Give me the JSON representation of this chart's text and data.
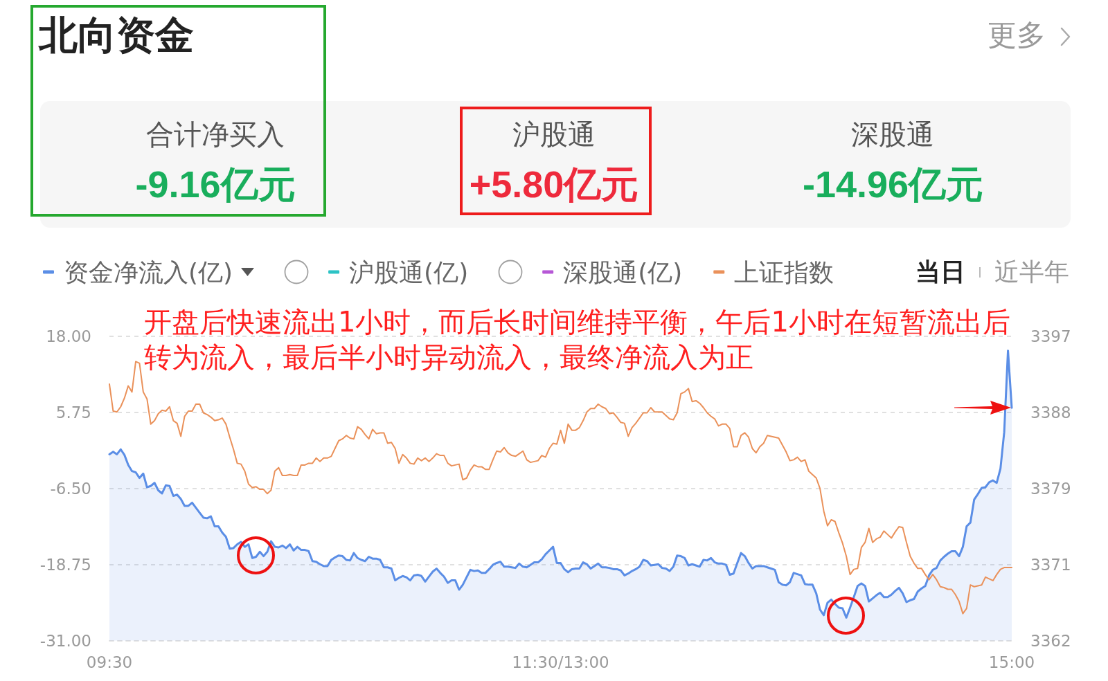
{
  "chart_data": [
    {
      "type": "other",
      "title": "北向资金",
      "annotations": [
        "更多",
        "合计净买入",
        "-9.16亿元",
        "沪股通",
        "+5.80亿元",
        "深股通",
        "-14.96亿元"
      ]
    },
    {
      "type": "line",
      "annotations": [
        "当日",
        "近半年",
        "开盘后快速流出1小时，而后长时间维持平衡，午后1小时在短暂流出后转为流入，最后半小时异动流入，最终净流入为正"
      ],
      "categories": [
        "09:30",
        null,
        null,
        null,
        null,
        null,
        null,
        null,
        null,
        null,
        null,
        null,
        null,
        null,
        null,
        null,
        null,
        null,
        null,
        null,
        null,
        null,
        null,
        null,
        null,
        null,
        null,
        null,
        null,
        null,
        null,
        null,
        null,
        null,
        null,
        null,
        null,
        null,
        null,
        null,
        null,
        null,
        null,
        null,
        null,
        null,
        null,
        null,
        null,
        null,
        null,
        null,
        null,
        null,
        null,
        null,
        null,
        null,
        null,
        null,
        null,
        null,
        null,
        null,
        null,
        null,
        null,
        null,
        null,
        null,
        null,
        null,
        null,
        null,
        null,
        null,
        null,
        null,
        null,
        null,
        null,
        null,
        null,
        null,
        null,
        null,
        null,
        null,
        null,
        null,
        null,
        null,
        null,
        null,
        null,
        null,
        null,
        null,
        null,
        null,
        null,
        null,
        null,
        null,
        null,
        null,
        null,
        null,
        null,
        null,
        null,
        null,
        null,
        null,
        null,
        null,
        null,
        null,
        null,
        null,
        "11:30/13:00",
        null,
        null,
        null,
        null,
        null,
        null,
        null,
        null,
        null,
        null,
        null,
        null,
        null,
        null,
        null,
        null,
        null,
        null,
        null,
        null,
        null,
        null,
        null,
        null,
        null,
        null,
        null,
        null,
        null,
        null,
        null,
        null,
        null,
        null,
        null,
        null,
        null,
        null,
        null,
        null,
        null,
        null,
        null,
        null,
        null,
        null,
        null,
        null,
        null,
        null,
        null,
        null,
        null,
        null,
        null,
        null,
        null,
        null,
        null,
        null,
        null,
        null,
        null,
        null,
        null,
        null,
        null,
        null,
        null,
        null,
        null,
        null,
        null,
        null,
        null,
        null,
        null,
        null,
        null,
        null,
        null,
        null,
        null,
        null,
        null,
        null,
        null,
        null,
        null,
        null,
        null,
        null,
        null,
        null,
        null,
        null,
        null,
        null,
        null,
        null,
        null,
        null,
        null,
        null,
        null,
        null,
        null,
        null,
        null,
        null,
        null,
        null,
        null,
        null,
        null,
        null,
        null,
        null,
        null,
        "15:00"
      ],
      "ylim": [
        -31,
        18
      ],
      "yticks": [
        {
          "value": -31,
          "label": "-31.00"
        },
        -18.75,
        {
          "value": -6.5,
          "label": "-6.50"
        },
        5.75,
        {
          "value": 18,
          "label": "18.00"
        }
      ],
      "y2lim": [
        3362,
        3397
      ],
      "y2ticks": [
        3362,
        {
          "value": 3370.75,
          "label": "3371"
        },
        {
          "value": 3379.5,
          "label": "3379"
        },
        {
          "value": 3388.25,
          "label": "3388"
        },
        3397
      ],
      "grid": "y",
      "legend": "top",
      "series": [
        {
          "name": "资金净流入(亿)",
          "color": "#5b8ee6",
          "values": [
            -1.0,
            -0.6,
            -1.0,
            -0.2,
            -1.1,
            -2.7,
            -3.7,
            -3.9,
            -4.8,
            -4.1,
            -6.3,
            -6.1,
            -5.6,
            -6.8,
            -7.3,
            -6.0,
            -6.1,
            -7.7,
            -7.5,
            -8.2,
            -9.3,
            -9.3,
            -8.8,
            -9.6,
            -10.4,
            -11.2,
            -11.3,
            -11.0,
            -12.6,
            -12.6,
            -13.6,
            -14.3,
            -16.2,
            -16.1,
            -15.5,
            -15.1,
            -15.9,
            -15.5,
            -17.7,
            -17.5,
            -16.7,
            -17.4,
            -16.7,
            -15.0,
            -15.9,
            -16.0,
            -15.7,
            -16.1,
            -15.5,
            -16.5,
            -15.9,
            -16.4,
            -16.4,
            -16.6,
            -18.2,
            -18.3,
            -18.7,
            -19.0,
            -19.0,
            -18.0,
            -17.6,
            -17.3,
            -17.4,
            -18.0,
            -18.1,
            -16.9,
            -17.7,
            -18.0,
            -18.2,
            -17.5,
            -17.8,
            -17.8,
            -18.0,
            -19.2,
            -19.2,
            -19.4,
            -21.3,
            -20.9,
            -20.6,
            -20.8,
            -21.3,
            -20.5,
            -20.4,
            -20.6,
            -21.5,
            -20.7,
            -19.9,
            -19.4,
            -20.1,
            -20.7,
            -21.7,
            -21.3,
            -21.3,
            -22.8,
            -22.0,
            -20.8,
            -19.6,
            -19.8,
            -19.7,
            -20.1,
            -20.1,
            -19.5,
            -18.8,
            -18.5,
            -18.3,
            -19.1,
            -19.1,
            -19.2,
            -19.3,
            -18.6,
            -19.1,
            -19.2,
            -18.8,
            -18.4,
            -18.4,
            -17.9,
            -17.1,
            -16.5,
            -15.9,
            -18.5,
            -18.5,
            -19.5,
            -20.0,
            -19.5,
            -19.4,
            -19.4,
            -18.4,
            -18.7,
            -19.4,
            -19.0,
            -18.6,
            -19.2,
            -19.2,
            -19.3,
            -19.5,
            -19.5,
            -19.7,
            -20.5,
            -20.2,
            -19.8,
            -19.5,
            -19.1,
            -18.0,
            -18.2,
            -18.9,
            -18.8,
            -18.7,
            -19.3,
            -19.4,
            -19.8,
            -19.1,
            -17.3,
            -17.4,
            -17.7,
            -18.9,
            -18.7,
            -18.9,
            -19.1,
            -18.0,
            -18.1,
            -17.7,
            -18.4,
            -18.6,
            -18.6,
            -18.8,
            -20.4,
            -20.2,
            -18.5,
            -16.9,
            -17.4,
            -18.5,
            -19.4,
            -19.0,
            -19.0,
            -19.0,
            -19.2,
            -19.4,
            -19.6,
            -21.6,
            -22.0,
            -22.1,
            -21.6,
            -20.1,
            -20.3,
            -20.5,
            -21.9,
            -22.0,
            -22.0,
            -23.4,
            -26.0,
            -26.9,
            -24.9,
            -24.4,
            -25.1,
            -25.7,
            -25.8,
            -27.3,
            -25.7,
            -24.0,
            -22.2,
            -21.8,
            -22.2,
            -24.7,
            -24.2,
            -23.7,
            -23.3,
            -24.0,
            -24.0,
            -23.6,
            -23.0,
            -22.5,
            -23.4,
            -24.8,
            -24.5,
            -24.3,
            -23.1,
            -22.6,
            -22.2,
            -20.5,
            -19.6,
            -19.3,
            -18.1,
            -17.5,
            -17.0,
            -16.6,
            -16.6,
            -17.4,
            -15.9,
            -12.6,
            -12.0,
            -8.3,
            -7.4,
            -6.4,
            -6.3,
            -5.5,
            -5.2,
            -5.6,
            -3.3,
            2.6,
            15.7,
            6.5
          ],
          "lower": [
            -31,
            -31,
            -31,
            -31,
            -31,
            -31,
            -31,
            -31,
            -31,
            -31,
            -31,
            -31,
            -31,
            -31,
            -31,
            -31,
            -31,
            -31,
            -31,
            -31,
            -31,
            -31,
            -31,
            -31,
            -31,
            -31,
            -31,
            -31,
            -31,
            -31,
            -31,
            -31,
            -31,
            -31,
            -31,
            -31,
            -31,
            -31,
            -31,
            -31,
            -31,
            -31,
            -31,
            -31,
            -31,
            -31,
            -31,
            -31,
            -31,
            -31,
            -31,
            -31,
            -31,
            -31,
            -31,
            -31,
            -31,
            -31,
            -31,
            -31,
            -31,
            -31,
            -31,
            -31,
            -31,
            -31,
            -31,
            -31,
            -31,
            -31,
            -31,
            -31,
            -31,
            -31,
            -31,
            -31,
            -31,
            -31,
            -31,
            -31,
            -31,
            -31,
            -31,
            -31,
            -31,
            -31,
            -31,
            -31,
            -31,
            -31,
            -31,
            -31,
            -31,
            -31,
            -31,
            -31,
            -31,
            -31,
            -31,
            -31,
            -31,
            -31,
            -31,
            -31,
            -31,
            -31,
            -31,
            -31,
            -31,
            -31,
            -31,
            -31,
            -31,
            -31,
            -31,
            -31,
            -31,
            -31,
            -31,
            -31,
            -31,
            -31,
            -31,
            -31,
            -31,
            -31,
            -31,
            -31,
            -31,
            -31,
            -31,
            -31,
            -31,
            -31,
            -31,
            -31,
            -31,
            -31,
            -31,
            -31,
            -31,
            -31,
            -31,
            -31,
            -31,
            -31,
            -31,
            -31,
            -31,
            -31,
            -31,
            -31,
            -31,
            -31,
            -31,
            -31,
            -31,
            -31,
            -31,
            -31,
            -31,
            -31,
            -31,
            -31,
            -31,
            -31,
            -31,
            -31,
            -31,
            -31,
            -31,
            -31,
            -31,
            -31,
            -31,
            -31,
            -31,
            -31,
            -31,
            -31,
            -31,
            -31,
            -31,
            -31,
            -31,
            -31,
            -31,
            -31,
            -31,
            -31,
            -31,
            -31,
            -31,
            -31,
            -31,
            -31,
            -31,
            -31,
            -31,
            -31,
            -31,
            -31,
            -31,
            -31,
            -31,
            -31,
            -31,
            -31,
            -31,
            -31,
            -31,
            -31,
            -31,
            -31,
            -31,
            -31,
            -31,
            -31,
            -31,
            -31,
            -31,
            -31,
            -31,
            -31,
            -31,
            -31,
            -31,
            -31,
            -31,
            -31,
            -31,
            -31,
            -31,
            -31,
            -31,
            -31,
            -31,
            -31,
            -31,
            -31,
            -31
          ],
          "upper": [
            -1.0,
            -0.6,
            -1.0,
            -0.2,
            -1.1,
            -2.7,
            -3.7,
            -3.9,
            -4.8,
            -4.1,
            -6.3,
            -6.1,
            -5.6,
            -6.8,
            -7.3,
            -6.0,
            -6.1,
            -7.7,
            -7.5,
            -8.2,
            -9.3,
            -9.3,
            -8.8,
            -9.6,
            -10.4,
            -11.2,
            -11.3,
            -11.0,
            -12.6,
            -12.6,
            -13.6,
            -14.3,
            -16.2,
            -16.1,
            -15.5,
            -15.1,
            -15.9,
            -15.5,
            -17.7,
            -17.5,
            -16.7,
            -17.4,
            -16.7,
            -15.0,
            -15.9,
            -16.0,
            -15.7,
            -16.1,
            -15.5,
            -16.5,
            -15.9,
            -16.4,
            -16.4,
            -16.6,
            -18.2,
            -18.3,
            -18.7,
            -19.0,
            -19.0,
            -18.0,
            -17.6,
            -17.3,
            -17.4,
            -18.0,
            -18.1,
            -16.9,
            -17.7,
            -18.0,
            -18.2,
            -17.5,
            -17.8,
            -17.8,
            -18.0,
            -19.2,
            -19.2,
            -19.4,
            -21.3,
            -20.9,
            -20.6,
            -20.8,
            -21.3,
            -20.5,
            -20.4,
            -20.6,
            -21.5,
            -20.7,
            -19.9,
            -19.4,
            -20.1,
            -20.7,
            -21.7,
            -21.3,
            -21.3,
            -22.8,
            -22.0,
            -20.8,
            -19.6,
            -19.8,
            -19.7,
            -20.1,
            -20.1,
            -19.5,
            -18.8,
            -18.5,
            -18.3,
            -19.1,
            -19.1,
            -19.2,
            -19.3,
            -18.6,
            -19.1,
            -19.2,
            -18.8,
            -18.4,
            -18.4,
            -17.9,
            -17.1,
            -16.5,
            -15.9,
            -18.5,
            -18.5,
            -19.5,
            -20.0,
            -19.5,
            -19.4,
            -19.4,
            -18.4,
            -18.7,
            -19.4,
            -19.0,
            -18.6,
            -19.2,
            -19.2,
            -19.3,
            -19.5,
            -19.5,
            -19.7,
            -20.5,
            -20.2,
            -19.8,
            -19.5,
            -19.1,
            -18.0,
            -18.2,
            -18.9,
            -18.8,
            -18.7,
            -19.3,
            -19.4,
            -19.8,
            -19.1,
            -17.3,
            -17.4,
            -17.7,
            -18.9,
            -18.7,
            -18.9,
            -19.1,
            -18.0,
            -18.1,
            -17.7,
            -18.4,
            -18.6,
            -18.6,
            -18.8,
            -20.4,
            -20.2,
            -18.5,
            -16.9,
            -17.4,
            -18.5,
            -19.4,
            -19.0,
            -19.0,
            -19.0,
            -19.2,
            -19.4,
            -19.6,
            -21.6,
            -22.0,
            -22.1,
            -21.6,
            -20.1,
            -20.3,
            -20.5,
            -21.9,
            -22.0,
            -22.0,
            -23.4,
            -26.0,
            -26.9,
            -24.9,
            -24.4,
            -25.1,
            -25.7,
            -25.8,
            -27.3,
            -25.7,
            -24.0,
            -22.2,
            -21.8,
            -22.2,
            -24.7,
            -24.2,
            -23.7,
            -23.3,
            -24.0,
            -24.0,
            -23.6,
            -23.0,
            -22.5,
            -23.4,
            -24.8,
            -24.5,
            -24.3,
            -23.1,
            -22.6,
            -22.2,
            -20.5,
            -19.6,
            -19.3,
            -18.1,
            -17.5,
            -17.0,
            -16.6,
            -16.6,
            -17.4,
            -15.9,
            -12.6,
            -12.0,
            -8.3,
            -7.4,
            -6.4,
            -6.3,
            -5.5,
            -5.2,
            -5.6,
            -3.3,
            2.6,
            15.7,
            6.5
          ]
        },
        {
          "name": "沪股通(亿)",
          "color": "#2cc3c5",
          "values": [
            null,
            null,
            null,
            null,
            null,
            null,
            null,
            null,
            null,
            null,
            null,
            null,
            null,
            null,
            null,
            null,
            null,
            null,
            null,
            null,
            null,
            null,
            null,
            null,
            null,
            null,
            null,
            null,
            null,
            null,
            null,
            null,
            null,
            null,
            null,
            null,
            null,
            null,
            null,
            null,
            null,
            null,
            null,
            null,
            null,
            null,
            null,
            null,
            null,
            null,
            null,
            null,
            null,
            null,
            null,
            null,
            null,
            null,
            null,
            null,
            null,
            null,
            null,
            null,
            null,
            null,
            null,
            null,
            null,
            null,
            null,
            null,
            null,
            null,
            null,
            null,
            null,
            null,
            null,
            null,
            null,
            null,
            null,
            null,
            null,
            null,
            null,
            null,
            null,
            null,
            null,
            null,
            null,
            null,
            null,
            null,
            null,
            null,
            null,
            null,
            null,
            null,
            null,
            null,
            null,
            null,
            null,
            null,
            null,
            null,
            null,
            null,
            null,
            null,
            null,
            null,
            null,
            null,
            null,
            null,
            null,
            null,
            null,
            null,
            null,
            null,
            null,
            null,
            null,
            null,
            null,
            null,
            null,
            null,
            null,
            null,
            null,
            null,
            null,
            null,
            null,
            null,
            null,
            null,
            null,
            null,
            null,
            null,
            null,
            null,
            null,
            null,
            null,
            null,
            null,
            null,
            null,
            null,
            null,
            null,
            null,
            null,
            null,
            null,
            null,
            null,
            null,
            null,
            null,
            null,
            null,
            null,
            null,
            null,
            null,
            null,
            null,
            null,
            null,
            null,
            null,
            null,
            null,
            null,
            null,
            null,
            null,
            null,
            null,
            null,
            null,
            null,
            null,
            null,
            null,
            null,
            null,
            null,
            null,
            null,
            null,
            null,
            null,
            null,
            null,
            null,
            null,
            null,
            null,
            null,
            null,
            null,
            null,
            null,
            null,
            null,
            null,
            null,
            null,
            null,
            null,
            null,
            null,
            null,
            null,
            null,
            null,
            null,
            null,
            null,
            null,
            null,
            null,
            null,
            null,
            null,
            null,
            null,
            null,
            null,
            null
          ]
        },
        {
          "name": "深股通(亿)",
          "color": "#b657d6",
          "values": [
            null,
            null,
            null,
            null,
            null,
            null,
            null,
            null,
            null,
            null,
            null,
            null,
            null,
            null,
            null,
            null,
            null,
            null,
            null,
            null,
            null,
            null,
            null,
            null,
            null,
            null,
            null,
            null,
            null,
            null,
            null,
            null,
            null,
            null,
            null,
            null,
            null,
            null,
            null,
            null,
            null,
            null,
            null,
            null,
            null,
            null,
            null,
            null,
            null,
            null,
            null,
            null,
            null,
            null,
            null,
            null,
            null,
            null,
            null,
            null,
            null,
            null,
            null,
            null,
            null,
            null,
            null,
            null,
            null,
            null,
            null,
            null,
            null,
            null,
            null,
            null,
            null,
            null,
            null,
            null,
            null,
            null,
            null,
            null,
            null,
            null,
            null,
            null,
            null,
            null,
            null,
            null,
            null,
            null,
            null,
            null,
            null,
            null,
            null,
            null,
            null,
            null,
            null,
            null,
            null,
            null,
            null,
            null,
            null,
            null,
            null,
            null,
            null,
            null,
            null,
            null,
            null,
            null,
            null,
            null,
            null,
            null,
            null,
            null,
            null,
            null,
            null,
            null,
            null,
            null,
            null,
            null,
            null,
            null,
            null,
            null,
            null,
            null,
            null,
            null,
            null,
            null,
            null,
            null,
            null,
            null,
            null,
            null,
            null,
            null,
            null,
            null,
            null,
            null,
            null,
            null,
            null,
            null,
            null,
            null,
            null,
            null,
            null,
            null,
            null,
            null,
            null,
            null,
            null,
            null,
            null,
            null,
            null,
            null,
            null,
            null,
            null,
            null,
            null,
            null,
            null,
            null,
            null,
            null,
            null,
            null,
            null,
            null,
            null,
            null,
            null,
            null,
            null,
            null,
            null,
            null,
            null,
            null,
            null,
            null,
            null,
            null,
            null,
            null,
            null,
            null,
            null,
            null,
            null,
            null,
            null,
            null,
            null,
            null,
            null,
            null,
            null,
            null,
            null,
            null,
            null,
            null,
            null,
            null,
            null,
            null,
            null,
            null,
            null,
            null,
            null,
            null,
            null,
            null,
            null,
            null,
            null,
            null,
            null,
            null,
            null
          ]
        },
        {
          "name": "上证指数",
          "color": "#ea915a",
          "axis": "y2",
          "values": [
            3391.5,
            3388.4,
            3388.3,
            3388.9,
            3389.9,
            3391.3,
            3390.6,
            3394.1,
            3393.9,
            3390.6,
            3389.8,
            3386.9,
            3387.3,
            3388.1,
            3388.5,
            3388.4,
            3388.9,
            3387.3,
            3387.0,
            3385.5,
            3387.8,
            3388.4,
            3388.4,
            3389.2,
            3389.2,
            3388.2,
            3388.0,
            3387.7,
            3387.3,
            3387.4,
            3387.6,
            3386.9,
            3385.4,
            3384.0,
            3382.4,
            3382.3,
            3381.5,
            3380.0,
            3379.6,
            3379.7,
            3379.4,
            3379.4,
            3378.9,
            3379.3,
            3381.5,
            3381.9,
            3381.0,
            3381.0,
            3381.1,
            3381.0,
            3381.0,
            3382.2,
            3382.2,
            3382.4,
            3382.4,
            3383.0,
            3382.6,
            3383.0,
            3383.0,
            3383.2,
            3384.1,
            3385.0,
            3385.2,
            3385.6,
            3385.3,
            3385.2,
            3386.6,
            3386.3,
            3385.7,
            3385.2,
            3386.3,
            3385.8,
            3385.9,
            3385.9,
            3384.7,
            3384.8,
            3384.1,
            3382.4,
            3383.4,
            3383.0,
            3382.4,
            3382.3,
            3383.0,
            3382.7,
            3383.0,
            3382.6,
            3383.0,
            3383.5,
            3383.3,
            3383.3,
            3382.4,
            3382.1,
            3382.2,
            3382.3,
            3380.5,
            3380.7,
            3381.6,
            3382.2,
            3382.0,
            3382.0,
            3381.7,
            3381.7,
            3382.8,
            3383.8,
            3383.7,
            3384.2,
            3383.6,
            3383.3,
            3383.2,
            3383.5,
            3383.8,
            3382.8,
            3382.5,
            3382.6,
            3382.7,
            3383.3,
            3383.1,
            3384.1,
            3384.7,
            3384.6,
            3386.2,
            3384.7,
            3386.9,
            3386.2,
            3386.2,
            3386.5,
            3387.3,
            3388.3,
            3388.7,
            3388.7,
            3389.2,
            3388.9,
            3388.7,
            3388.1,
            3388.2,
            3387.7,
            3387.1,
            3387.0,
            3385.5,
            3386.5,
            3387.0,
            3387.6,
            3388.2,
            3388.2,
            3388.8,
            3388.3,
            3388.3,
            3388.3,
            3387.9,
            3387.5,
            3387.4,
            3388.2,
            3390.4,
            3390.6,
            3391.0,
            3389.5,
            3389.6,
            3389.3,
            3388.8,
            3388.2,
            3387.8,
            3387.5,
            3386.7,
            3386.9,
            3386.9,
            3386.4,
            3384.3,
            3384.3,
            3385.6,
            3385.9,
            3385.4,
            3384.1,
            3383.6,
            3384.3,
            3384.7,
            3385.6,
            3385.5,
            3385.4,
            3385.3,
            3384.5,
            3383.7,
            3382.7,
            3382.8,
            3383.1,
            3382.6,
            3382.8,
            3381.5,
            3381.1,
            3380.7,
            3379.5,
            3376.9,
            3375.2,
            3375.9,
            3375.7,
            3374.4,
            3373.2,
            3371.7,
            3369.6,
            3370.2,
            3370.3,
            3372.7,
            3373.3,
            3374.9,
            3373.3,
            3373.7,
            3373.9,
            3374.6,
            3374.2,
            3373.8,
            3374.5,
            3375.1,
            3375.0,
            3373.3,
            3371.7,
            3370.9,
            3370.3,
            3370.3,
            3369.6,
            3369.0,
            3369.6,
            3369.0,
            3368.2,
            3368.1,
            3367.9,
            3367.9,
            3367.3,
            3366.5,
            3365.1,
            3365.7,
            3368.4,
            3368.2,
            3368.3,
            3368.4,
            3369.3,
            3369.1,
            3368.9,
            3369.6,
            3370.2,
            3370.4,
            3370.4,
            3370.4
          ]
        }
      ]
    }
  ]
}
